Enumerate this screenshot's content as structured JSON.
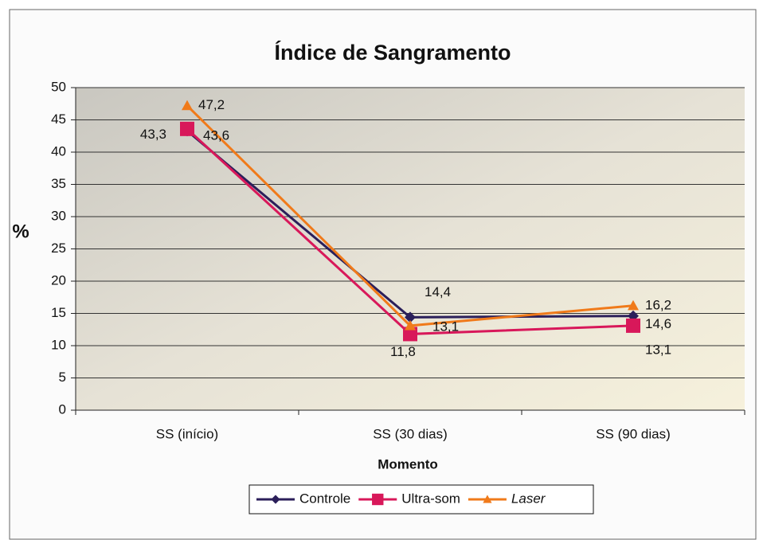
{
  "chart_data": {
    "type": "line",
    "title": "Índice de Sangramento",
    "y_label": "%",
    "x_label": "Momento",
    "categories": [
      "SS (início)",
      "SS (30 dias)",
      "SS (90 dias)"
    ],
    "series": [
      {
        "name": "Controle",
        "color": "#2b1f5a",
        "marker": "diamond",
        "values": [
          43.3,
          14.4,
          14.6
        ],
        "value_labels": [
          "43,3",
          "14,4",
          "14,6"
        ]
      },
      {
        "name": "Ultra-som",
        "color": "#d8185a",
        "marker": "square",
        "values": [
          43.6,
          11.8,
          13.1
        ],
        "value_labels": [
          "43,6",
          "11,8",
          "13,1"
        ]
      },
      {
        "name": "Laser",
        "color": "#f07a1a",
        "marker": "triangle",
        "values": [
          47.2,
          13.1,
          16.2
        ],
        "value_labels": [
          "47,2",
          "13,1",
          "16,2"
        ]
      }
    ],
    "ylim": [
      0,
      50
    ],
    "yticks": [
      0,
      5,
      10,
      15,
      20,
      25,
      30,
      35,
      40,
      45,
      50
    ],
    "grid": true
  }
}
